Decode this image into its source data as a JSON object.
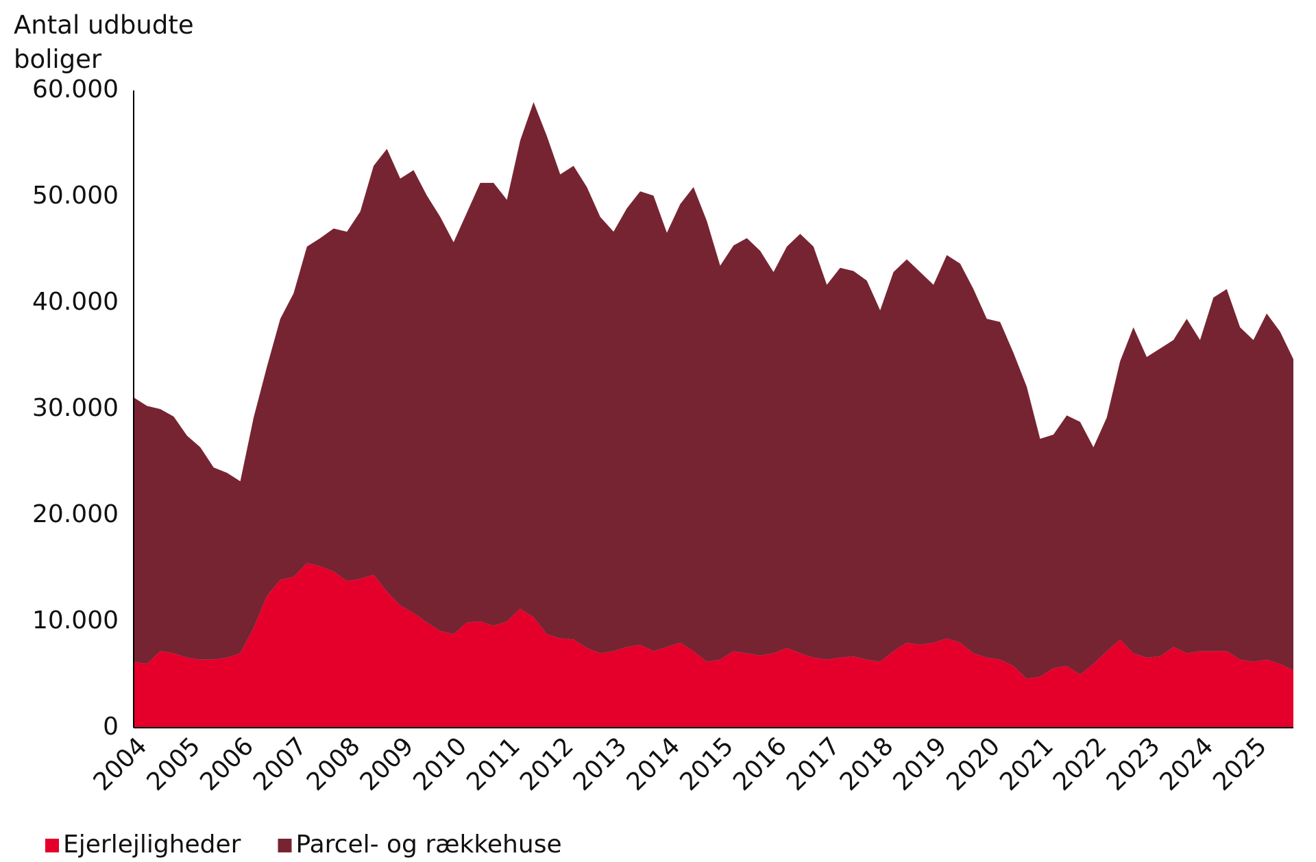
{
  "chart_data": {
    "type": "stacked_area",
    "y_label": "Antal udbudte boliger",
    "x": [
      2004,
      2004.25,
      2004.5,
      2004.75,
      2005,
      2005.25,
      2005.5,
      2005.75,
      2006,
      2006.25,
      2006.5,
      2006.75,
      2007,
      2007.25,
      2007.5,
      2007.75,
      2008,
      2008.25,
      2008.5,
      2008.75,
      2009,
      2009.25,
      2009.5,
      2009.75,
      2010,
      2010.25,
      2010.5,
      2010.75,
      2011,
      2011.25,
      2011.5,
      2011.75,
      2012,
      2012.25,
      2012.5,
      2012.75,
      2013,
      2013.25,
      2013.5,
      2013.75,
      2014,
      2014.25,
      2014.5,
      2014.75,
      2015,
      2015.25,
      2015.5,
      2015.75,
      2016,
      2016.25,
      2016.5,
      2016.75,
      2017,
      2017.25,
      2017.5,
      2017.75,
      2018,
      2018.25,
      2018.5,
      2018.75,
      2019,
      2019.25,
      2019.5,
      2019.75,
      2020,
      2020.25,
      2020.5,
      2020.75,
      2021,
      2021.25,
      2021.5,
      2021.75,
      2022,
      2022.25,
      2022.5,
      2022.75,
      2023,
      2023.25,
      2023.5,
      2023.75,
      2024,
      2024.25,
      2024.5,
      2024.75,
      2025,
      2025.25,
      2025.5,
      2025.75
    ],
    "series": [
      {
        "name": "Ejerlejligheder",
        "color": "#e4002b",
        "values": [
          6200,
          6000,
          7200,
          7000,
          6600,
          6400,
          6400,
          6600,
          7000,
          9400,
          12400,
          13900,
          14200,
          15500,
          15200,
          14700,
          13800,
          14000,
          14400,
          12800,
          11500,
          10800,
          9900,
          9100,
          8800,
          9900,
          10000,
          9600,
          10000,
          11200,
          10400,
          8800,
          8400,
          8300,
          7500,
          7000,
          7200,
          7600,
          7800,
          7200,
          7600,
          8000,
          7200,
          6200,
          6400,
          7200,
          7000,
          6800,
          7000,
          7500,
          7000,
          6600,
          6400,
          6600,
          6700,
          6400,
          6200,
          7200,
          8000,
          7800,
          8000,
          8400,
          8000,
          7000,
          6600,
          6400,
          5800,
          4600,
          4800,
          5600,
          5800,
          5000,
          6000,
          7200,
          8300,
          7000,
          6600,
          6700,
          7600,
          7000,
          7200,
          7200,
          7200,
          6400,
          6200,
          6400,
          6000,
          5400
        ]
      },
      {
        "name": "Parcel- og rækkehuse",
        "color": "#772432",
        "values": [
          24900,
          24300,
          22800,
          22300,
          20900,
          20000,
          18100,
          17400,
          16200,
          19800,
          21600,
          24600,
          26700,
          29800,
          30900,
          32300,
          32900,
          34600,
          38500,
          41700,
          40200,
          41700,
          40200,
          39000,
          36900,
          38600,
          41300,
          41700,
          39700,
          44100,
          48500,
          46900,
          43700,
          44600,
          43400,
          41100,
          39500,
          41300,
          42700,
          42900,
          39000,
          41300,
          43700,
          41500,
          37100,
          38200,
          39100,
          38100,
          35900,
          37800,
          39500,
          38700,
          35300,
          36700,
          36300,
          35700,
          33100,
          35700,
          36100,
          35100,
          33700,
          36100,
          35700,
          34300,
          31900,
          31800,
          29500,
          27500,
          22400,
          22000,
          23600,
          23800,
          20400,
          22000,
          26200,
          30700,
          28300,
          29000,
          28900,
          31500,
          29300,
          33300,
          34100,
          31300,
          30300,
          32600,
          31300,
          29300
        ]
      }
    ],
    "xlim": [
      2004,
      2025.75
    ],
    "xticks": [
      2004,
      2005,
      2006,
      2007,
      2008,
      2009,
      2010,
      2011,
      2012,
      2013,
      2014,
      2015,
      2016,
      2017,
      2018,
      2019,
      2020,
      2021,
      2022,
      2023,
      2024,
      2025
    ],
    "ylim": [
      0,
      60000
    ],
    "yticks": [
      0,
      {
        "value": 10000,
        "label": "10.000"
      },
      {
        "value": 20000,
        "label": "20.000"
      },
      {
        "value": 30000,
        "label": "30.000"
      },
      {
        "value": 40000,
        "label": "40.000"
      },
      {
        "value": 50000,
        "label": "50.000"
      },
      {
        "value": 60000,
        "label": "60.000"
      }
    ],
    "grid": false,
    "legend": "bottom-left"
  }
}
